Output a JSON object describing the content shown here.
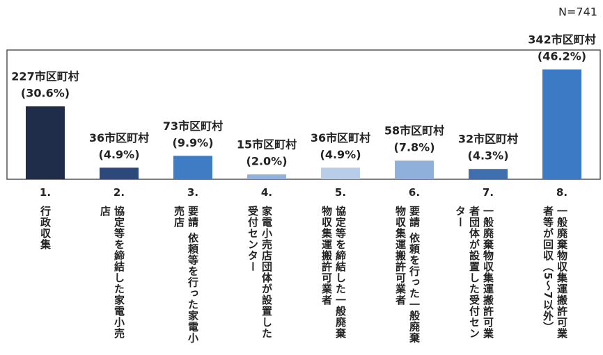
{
  "chart_data": {
    "type": "bar",
    "note": "N=741",
    "numbers": [
      "1.",
      "2.",
      "3.",
      "4.",
      "5.",
      "6.",
      "7.",
      "8."
    ],
    "categories": [
      "行政収集",
      "協定等を締結した家電小売店",
      "要請 依頼等を行った家電小売店",
      "家電小売店団体が設置した受付センター",
      "協定等を締結した一般廃棄物収集運搬許可業者",
      "要請 依頼を行った一般廃棄物収集運搬許可業者",
      "一般廃棄物収集運搬許可業者団体が設置した受付センター",
      "一般廃棄物収集運搬許可業者等が回収（5～7以外）"
    ],
    "values": [
      227,
      36,
      73,
      15,
      36,
      58,
      32,
      342
    ],
    "value_labels": [
      "227市区町村",
      "36市区町村",
      "73市区町村",
      "15市区町村",
      "36市区町村",
      "58市区町村",
      "32市区町村",
      "342市区町村"
    ],
    "shares": [
      30.6,
      4.9,
      9.9,
      2.0,
      4.9,
      7.8,
      4.3,
      46.2
    ],
    "share_labels": [
      "(30.6%)",
      "(4.9%)",
      "(9.9%)",
      "(2.0%)",
      "(4.9%)",
      "(7.8%)",
      "(4.3%)",
      "(46.2%)"
    ],
    "colors": [
      "#1f2d4a",
      "#2b4a7a",
      "#3f7cc4",
      "#8fb3e0",
      "#b8cdea",
      "#8fb0da",
      "#3f6fae",
      "#3d7ac6"
    ]
  }
}
